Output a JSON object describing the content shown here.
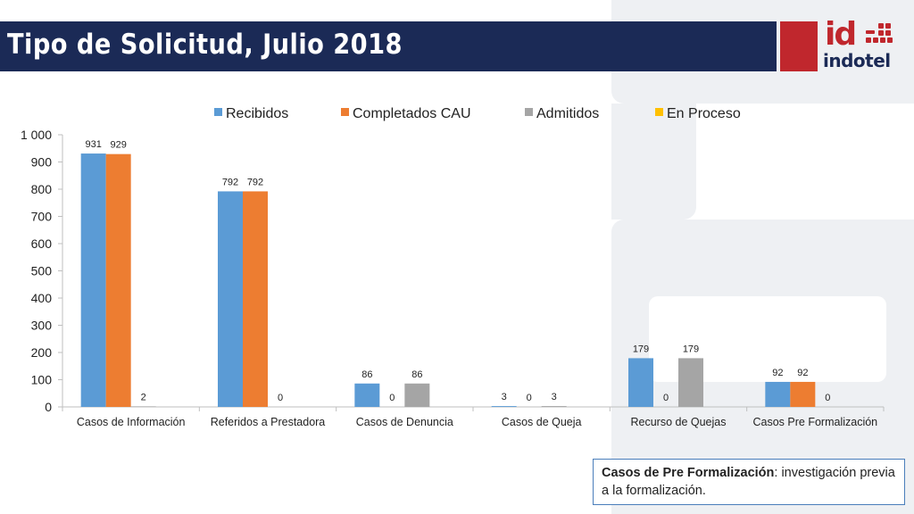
{
  "header": {
    "title": "Tipo de Solicitud, Julio 2018"
  },
  "logo": {
    "mark": "id",
    "word": "indotel",
    "color_primary": "#c0272d",
    "color_secondary": "#1b2a56"
  },
  "note": {
    "term": "Casos de Pre Formalización",
    "text": ": investigación previa a la formalización."
  },
  "chart_data": {
    "type": "bar",
    "title": "",
    "xlabel": "",
    "ylabel": "",
    "ylim": [
      0,
      1000
    ],
    "yticks": [
      0,
      100,
      200,
      300,
      400,
      500,
      600,
      700,
      800,
      900,
      1000
    ],
    "ytick_labels": [
      "0",
      "100",
      "200",
      "300",
      "400",
      "500",
      "600",
      "700",
      "800",
      "900",
      "1 000"
    ],
    "grid": false,
    "legend_position": "top",
    "categories": [
      "Casos de Información",
      "Referidos a Prestadora",
      "Casos de Denuncia",
      "Casos de Queja",
      "Recurso de Quejas",
      "Casos Pre Formalización"
    ],
    "series": [
      {
        "name": "Recibidos",
        "color": "#5b9bd5",
        "values": [
          931,
          792,
          86,
          3,
          179,
          92
        ]
      },
      {
        "name": "Completados CAU",
        "color": "#ed7d31",
        "values": [
          929,
          792,
          0,
          0,
          0,
          92
        ]
      },
      {
        "name": "Admitidos",
        "color": "#a5a5a5",
        "values": [
          2,
          0,
          86,
          3,
          179,
          0
        ]
      },
      {
        "name": "En Proceso",
        "color": "#ffc000",
        "values": [
          0,
          0,
          0,
          0,
          0,
          0
        ]
      }
    ]
  }
}
